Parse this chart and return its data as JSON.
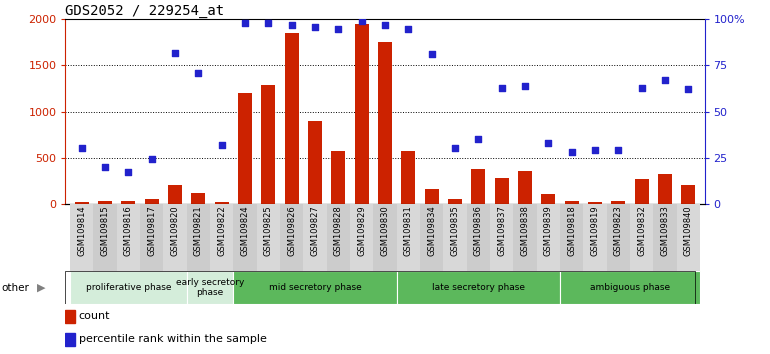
{
  "title": "GDS2052 / 229254_at",
  "samples": [
    "GSM109814",
    "GSM109815",
    "GSM109816",
    "GSM109817",
    "GSM109820",
    "GSM109821",
    "GSM109822",
    "GSM109824",
    "GSM109825",
    "GSM109826",
    "GSM109827",
    "GSM109828",
    "GSM109829",
    "GSM109830",
    "GSM109831",
    "GSM109834",
    "GSM109835",
    "GSM109836",
    "GSM109837",
    "GSM109838",
    "GSM109839",
    "GSM109818",
    "GSM109819",
    "GSM109823",
    "GSM109832",
    "GSM109833",
    "GSM109840"
  ],
  "counts": [
    15,
    32,
    28,
    50,
    205,
    115,
    22,
    1200,
    1290,
    1850,
    900,
    570,
    1950,
    1760,
    570,
    155,
    50,
    375,
    280,
    350,
    100,
    25,
    20,
    25,
    270,
    325,
    200
  ],
  "percentile_raw": [
    30,
    20,
    17,
    24,
    82,
    71,
    32,
    98,
    98,
    97,
    96,
    95,
    99,
    97,
    95,
    81,
    30,
    35,
    63,
    64,
    33,
    28,
    29,
    29,
    63,
    67,
    62
  ],
  "phase_defs": [
    {
      "label": "proliferative phase",
      "start": 0,
      "end": 5,
      "color": "#d4edda"
    },
    {
      "label": "early secretory\nphase",
      "start": 5,
      "end": 7,
      "color": "#d4edda"
    },
    {
      "label": "mid secretory phase",
      "start": 7,
      "end": 14,
      "color": "#5cb85c"
    },
    {
      "label": "late secretory phase",
      "start": 14,
      "end": 21,
      "color": "#5cb85c"
    },
    {
      "label": "ambiguous phase",
      "start": 21,
      "end": 27,
      "color": "#5cb85c"
    }
  ],
  "ylim": [
    0,
    2000
  ],
  "yticks": [
    0,
    500,
    1000,
    1500,
    2000
  ],
  "ytick_labels_left": [
    "0",
    "500",
    "1000",
    "1500",
    "2000"
  ],
  "ytick_labels_right": [
    "0",
    "25",
    "50",
    "75",
    "100%"
  ],
  "bar_color": "#cc2200",
  "scatter_color": "#2222cc",
  "legend_count": "count",
  "legend_pct": "percentile rank within the sample",
  "xticklabel_bg": "#d0d0d0"
}
